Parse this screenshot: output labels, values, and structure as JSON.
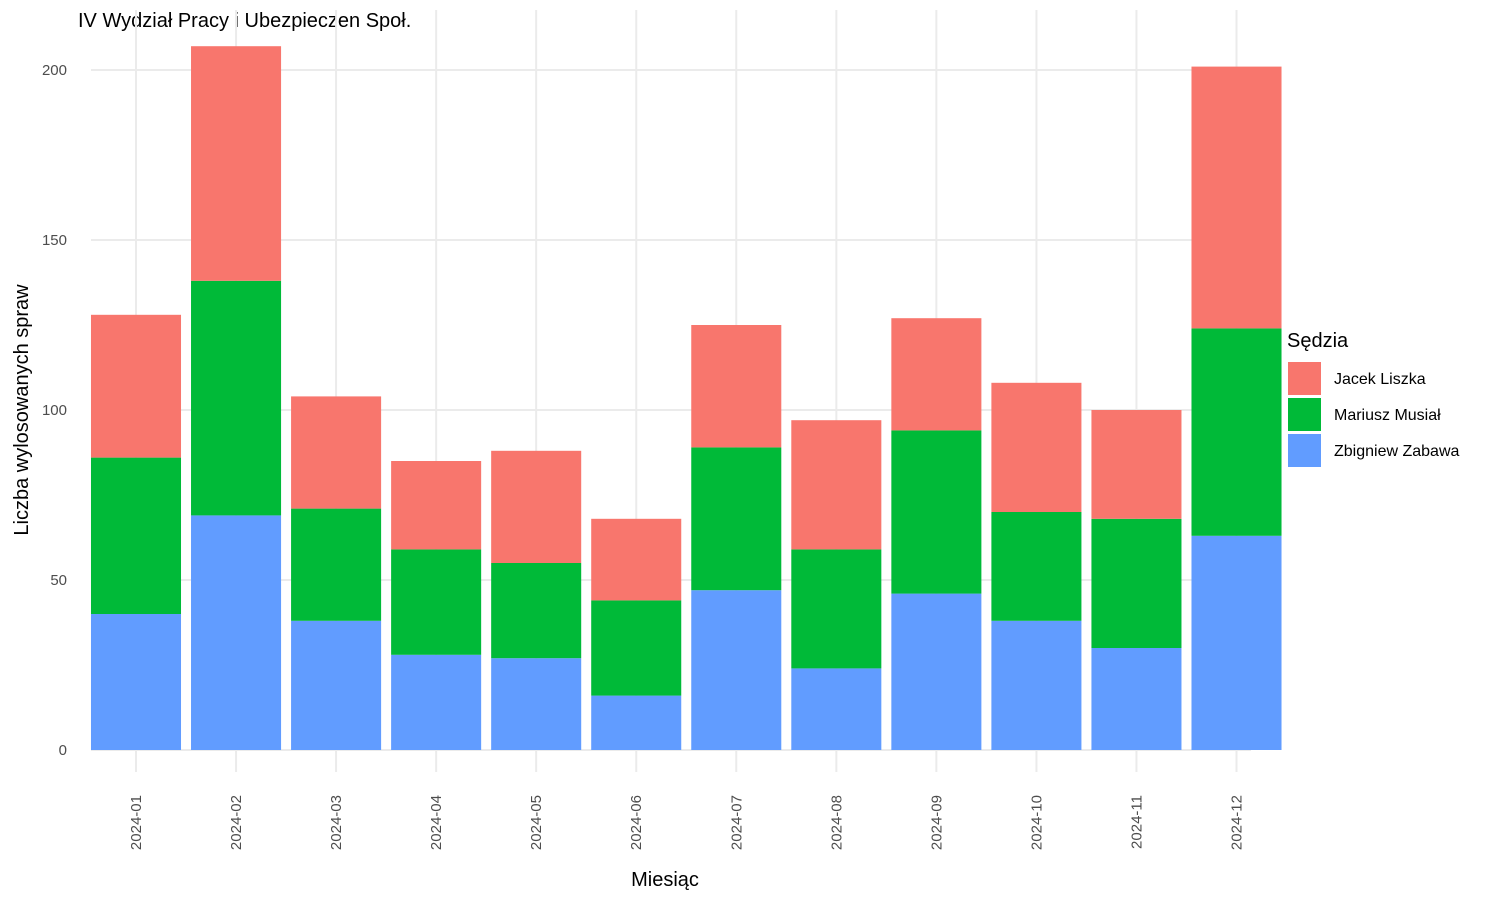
{
  "chart_data": {
    "type": "bar",
    "stacked": true,
    "title": "IV Wydział Pracy i Ubezpieczen Społ.",
    "xlabel": "Miesiąc",
    "ylabel": "Liczba wylosowanych spraw",
    "ylim": [
      0,
      210
    ],
    "yticks": [
      0,
      50,
      100,
      150,
      200
    ],
    "grid": true,
    "legend": {
      "title": "Sędzia",
      "position": "right"
    },
    "categories": [
      "2024-01",
      "2024-02",
      "2024-03",
      "2024-04",
      "2024-05",
      "2024-06",
      "2024-07",
      "2024-08",
      "2024-09",
      "2024-10",
      "2024-11",
      "2024-12"
    ],
    "series": [
      {
        "name": "Zbigniew Zabawa",
        "color": "#619CFF",
        "values": [
          40,
          69,
          38,
          28,
          27,
          16,
          47,
          24,
          46,
          38,
          30,
          63
        ]
      },
      {
        "name": "Mariusz Musiał",
        "color": "#00BA38",
        "values": [
          46,
          69,
          33,
          31,
          28,
          28,
          42,
          35,
          48,
          32,
          38,
          61
        ]
      },
      {
        "name": "Jacek Liszka",
        "color": "#F8766D",
        "values": [
          42,
          69,
          33,
          26,
          33,
          24,
          36,
          38,
          33,
          38,
          32,
          77
        ]
      }
    ],
    "legend_order": [
      "Jacek Liszka",
      "Mariusz Musiał",
      "Zbigniew Zabawa"
    ]
  }
}
